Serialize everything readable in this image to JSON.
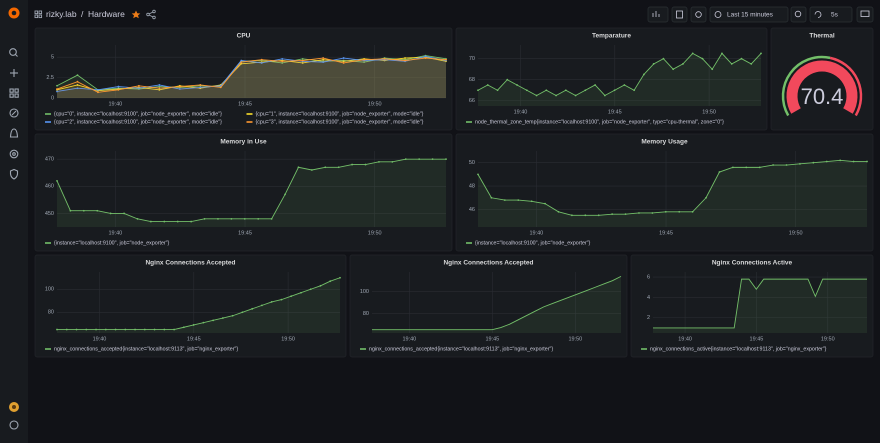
{
  "header": {
    "org": "rizky.lab",
    "separator": "/",
    "dashboard": "Hardware",
    "time_range": "Last 15 minutes",
    "refresh": "5s"
  },
  "panels": [
    {
      "title": "CPU",
      "type": "line",
      "xlim": [
        "19:37:45",
        "19:52:45"
      ],
      "xticks": [
        "19:40",
        "19:45",
        "19:50"
      ],
      "ylim": [
        0,
        6.5
      ],
      "yticks": [
        0,
        2.5,
        5
      ],
      "series": [
        {
          "name": "{cpu=\"0\", instance=\"localhost:9100\", job=\"node_exporter\", mode=\"idle\"}",
          "color": "#73bf69",
          "values": [
            1.5,
            2.8,
            1.0,
            1.2,
            1.1,
            1.4,
            1.3,
            1.5,
            1.4,
            4.5,
            4.6,
            4.3,
            4.8,
            4.5,
            4.6,
            4.4,
            4.9,
            4.7,
            5.2,
            4.8
          ]
        },
        {
          "name": "{cpu=\"1\", instance=\"localhost:9100\", job=\"node_exporter\", mode=\"idle\"}",
          "color": "#fade2a",
          "values": [
            1.0,
            1.6,
            0.9,
            1.1,
            1.3,
            1.0,
            1.5,
            1.2,
            1.6,
            4.2,
            4.4,
            4.6,
            4.3,
            4.7,
            4.5,
            4.8,
            4.6,
            4.9,
            5.0,
            4.5
          ]
        },
        {
          "name": "{cpu=\"2\", instance=\"localhost:9100\", job=\"node_exporter\", mode=\"idle\"}",
          "color": "#5794f2",
          "values": [
            0.8,
            1.2,
            1.0,
            1.4,
            1.2,
            1.6,
            1.1,
            1.3,
            1.5,
            4.6,
            4.3,
            4.8,
            4.5,
            4.4,
            4.9,
            4.6,
            4.7,
            4.5,
            5.1,
            4.6
          ]
        },
        {
          "name": "{cpu=\"3\", instance=\"localhost:9100\", job=\"node_exporter\", mode=\"idle\"}",
          "color": "#ff9830",
          "values": [
            1.1,
            2.0,
            0.7,
            1.0,
            1.5,
            1.2,
            1.4,
            1.6,
            1.3,
            4.4,
            4.7,
            4.5,
            4.6,
            4.9,
            4.3,
            4.7,
            4.8,
            4.6,
            4.9,
            4.7
          ]
        }
      ]
    },
    {
      "title": "Temparature",
      "type": "line",
      "xlim": [
        "19:37:45",
        "19:52:45"
      ],
      "xticks": [
        "19:40",
        "19:45",
        "19:50"
      ],
      "ylim": [
        65.5,
        71.3
      ],
      "yticks": [
        66,
        68,
        70
      ],
      "series": [
        {
          "name": "node_thermal_zone_temp{instance=\"localhost:9100\", job=\"node_exporter\", type=\"cpu-thermal\", zone=\"0\"}",
          "color": "#73bf69",
          "values": [
            67,
            67.5,
            67,
            68,
            67.5,
            67,
            66.5,
            67,
            66.5,
            67,
            66.5,
            67,
            67.5,
            66.5,
            67,
            67.5,
            67,
            68.5,
            69.5,
            70,
            69,
            69.5,
            70.5,
            70,
            69,
            70.5,
            69.5,
            70,
            69.5,
            70.5
          ]
        }
      ]
    },
    {
      "title": "Thermal",
      "type": "gauge",
      "value": 70.4,
      "color": "#f2495c",
      "threshold_colors": [
        "#73bf69",
        "#f2495c"
      ]
    },
    {
      "title": "Memory in Use",
      "type": "line",
      "xlim": [
        "19:37:45",
        "19:52:45"
      ],
      "xticks": [
        "19:40",
        "19:45",
        "19:50"
      ],
      "ylim": [
        445,
        473
      ],
      "yticks": [
        450,
        460,
        470
      ],
      "series": [
        {
          "name": "{instance=\"localhost:9100\", job=\"node_exporter\"}",
          "color": "#73bf69",
          "values": [
            462,
            451,
            451,
            451,
            450,
            450,
            448,
            447,
            447,
            447,
            447,
            448,
            448,
            448,
            448,
            448,
            448,
            457,
            467,
            466,
            467,
            467,
            468,
            468,
            469,
            469,
            470,
            470,
            470,
            470
          ]
        }
      ]
    },
    {
      "title": "Memory Usage",
      "type": "line",
      "xlim": [
        "19:37:45",
        "19:52:45"
      ],
      "xticks": [
        "19:40",
        "19:45",
        "19:50"
      ],
      "ylim": [
        44.5,
        51
      ],
      "yticks": [
        46,
        48,
        50
      ],
      "series": [
        {
          "name": "{instance=\"localhost:9100\", job=\"node_exporter\"}",
          "color": "#73bf69",
          "values": [
            49,
            47,
            46.8,
            46.8,
            46.7,
            46.5,
            45.8,
            45.5,
            45.5,
            45.5,
            45.6,
            45.6,
            45.7,
            45.7,
            45.8,
            45.8,
            45.8,
            47,
            49.2,
            49.6,
            49.6,
            49.6,
            49.8,
            49.8,
            49.9,
            50,
            50.1,
            50.2,
            50.1,
            50.1
          ]
        }
      ]
    },
    {
      "title": "Nginx Connections Accepted",
      "type": "line",
      "xlim": [
        "19:37:45",
        "19:52:45"
      ],
      "xticks": [
        "19:40",
        "19:45",
        "19:50"
      ],
      "ylim": [
        62,
        115
      ],
      "yticks": [
        80,
        100
      ],
      "series": [
        {
          "name": "nginx_connections_accepted{instance=\"localhost:9113\", job=\"nginx_exporter\"}",
          "color": "#73bf69",
          "values": [
            65,
            65,
            65,
            65,
            65,
            65,
            65,
            65,
            65,
            65,
            65,
            65,
            65,
            67,
            69,
            71,
            73,
            75,
            77,
            80,
            83,
            86,
            89,
            91,
            94,
            97,
            100,
            103,
            107,
            110
          ]
        }
      ]
    },
    {
      "title": "Nginx Connections Accepted",
      "type": "line",
      "xlim": [
        "19:37:45",
        "19:52:45"
      ],
      "xticks": [
        "19:40",
        "19:45",
        "19:50"
      ],
      "ylim": [
        62,
        118
      ],
      "yticks": [
        80,
        100
      ],
      "dots": false,
      "series": [
        {
          "name": "nginx_connections_accepted{instance=\"localhost:9113\", job=\"nginx_exporter\"}",
          "color": "#73bf69",
          "values": [
            65,
            65,
            65,
            65,
            65,
            65,
            65,
            65,
            65,
            65,
            65,
            65,
            65,
            65,
            65,
            67,
            70,
            74,
            78,
            82,
            86,
            89,
            92,
            95,
            98,
            101,
            104,
            107,
            110,
            114
          ]
        }
      ]
    },
    {
      "title": "Nginx Connections Active",
      "type": "line",
      "xlim": [
        "19:37:45",
        "19:52:45"
      ],
      "xticks": [
        "19:40",
        "19:45",
        "19:50"
      ],
      "ylim": [
        0.5,
        6.5
      ],
      "yticks": [
        2,
        4,
        6
      ],
      "dots": false,
      "series": [
        {
          "name": "nginx_connections_active{instance=\"localhost:9113\", job=\"nginx_exporter\"}",
          "color": "#73bf69",
          "values": [
            1,
            1,
            1,
            1,
            1,
            1,
            1,
            1,
            1,
            1,
            1,
            1,
            5.8,
            5.8,
            4.8,
            5.8,
            5.8,
            5.8,
            5.8,
            5.8,
            5.8,
            5.8,
            4.1,
            5.8,
            5.8,
            5.8,
            5.8,
            5.8,
            5.8,
            5.8
          ]
        }
      ]
    }
  ]
}
